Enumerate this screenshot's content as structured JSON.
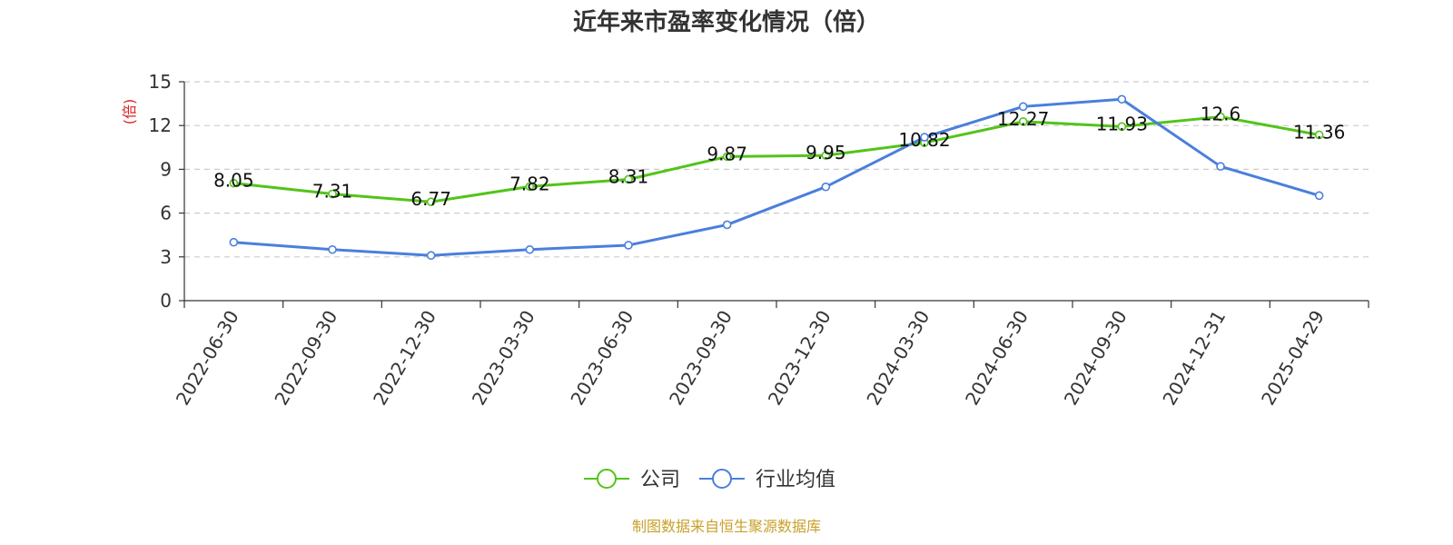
{
  "chart_data": {
    "type": "line",
    "title": "近年来市盈率变化情况（倍）",
    "ylabel": "(倍)",
    "ylim": [
      0,
      15
    ],
    "yticks": [
      0,
      3,
      6,
      9,
      12,
      15
    ],
    "grid": true,
    "legend_position": "bottom",
    "categories": [
      "2022-06-30",
      "2022-09-30",
      "2022-12-30",
      "2023-03-30",
      "2023-06-30",
      "2023-09-30",
      "2023-12-30",
      "2024-03-30",
      "2024-06-30",
      "2024-09-30",
      "2024-12-31",
      "2025-04-29"
    ],
    "series": [
      {
        "name": "公司",
        "color": "#52c41a",
        "show_labels": true,
        "values": [
          8.05,
          7.31,
          6.77,
          7.82,
          8.31,
          9.87,
          9.95,
          10.82,
          12.27,
          11.93,
          12.6,
          11.36
        ],
        "labels": [
          "8.05",
          "7.31",
          "6.77",
          "7.82",
          "8.31",
          "9.87",
          "9.95",
          "10.82",
          "12.27",
          "11.93",
          "12.6",
          "11.36"
        ]
      },
      {
        "name": "行业均值",
        "color": "#4a7fdc",
        "show_labels": false,
        "values": [
          4.0,
          3.5,
          3.1,
          3.5,
          3.8,
          5.2,
          7.8,
          11.2,
          13.3,
          13.8,
          9.2,
          7.2
        ]
      }
    ],
    "source": "制图数据来自恒生聚源数据库",
    "source_color": "#c8a02a",
    "ylabel_color": "#e02020"
  }
}
